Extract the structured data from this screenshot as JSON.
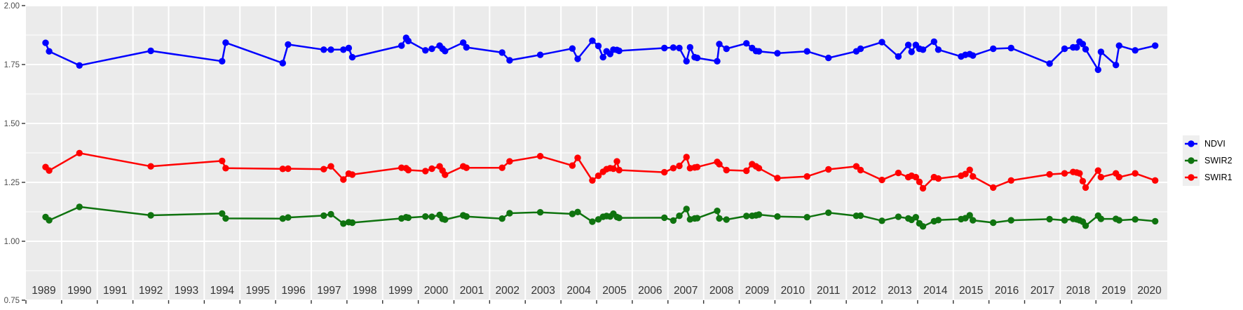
{
  "figure": {
    "background": "#FFFFFF",
    "panel_background": "#EBEBEB",
    "grid_color": "#FFFFFF",
    "x_axis_text_color": "#333333",
    "y_axis_text_color": "#4D4D4D",
    "tick_color": "#333333"
  },
  "chart_data": {
    "type": "line",
    "title": "",
    "xlabel": "",
    "ylabel": "",
    "grid": true,
    "legend_position": "right",
    "x_axis": {
      "range": [
        1988.5,
        2020.5
      ],
      "tick_labels": [
        "1989",
        "1990",
        "1991",
        "1992",
        "1993",
        "1994",
        "1995",
        "1996",
        "1997",
        "1998",
        "1999",
        "2000",
        "2001",
        "2002",
        "2003",
        "2004",
        "2005",
        "2006",
        "2007",
        "2008",
        "2009",
        "2010",
        "2011",
        "2012",
        "2013",
        "2014",
        "2015",
        "2016",
        "2017",
        "2018",
        "2019",
        "2020"
      ],
      "tick_values": [
        1989,
        1990,
        1991,
        1992,
        1993,
        1994,
        1995,
        1996,
        1997,
        1998,
        1999,
        2000,
        2001,
        2002,
        2003,
        2004,
        2005,
        2006,
        2007,
        2008,
        2009,
        2010,
        2011,
        2012,
        2013,
        2014,
        2015,
        2016,
        2017,
        2018,
        2019,
        2020
      ]
    },
    "y_axis": {
      "range": [
        0.75,
        2.0
      ],
      "tick_labels": [
        "0.75",
        "1.00",
        "1.25",
        "1.50",
        "1.75",
        "2.00"
      ],
      "tick_values": [
        0.75,
        1.0,
        1.25,
        1.5,
        1.75,
        2.0
      ],
      "minor_values": [
        0.875,
        1.125,
        1.375,
        1.625,
        1.875
      ]
    },
    "legend": {
      "entries": [
        {
          "label": "NDVI",
          "color": "#0000FF"
        },
        {
          "label": "SWIR2",
          "color": "#0F730F"
        },
        {
          "label": "SWIR1",
          "color": "#FF0000"
        }
      ],
      "key_background": "#EFEFEF"
    },
    "x": [
      1989.05,
      1989.15,
      1990.0,
      1992.0,
      1994.0,
      1994.1,
      1995.7,
      1995.85,
      1996.85,
      1997.05,
      1997.4,
      1997.55,
      1997.65,
      1999.03,
      1999.16,
      1999.22,
      1999.7,
      1999.88,
      2000.1,
      2000.18,
      2000.25,
      2000.76,
      2000.85,
      2001.85,
      2002.06,
      2002.92,
      2003.82,
      2003.97,
      2004.38,
      2004.55,
      2004.68,
      2004.78,
      2004.88,
      2004.97,
      2005.07,
      2005.13,
      2006.4,
      2006.65,
      2006.82,
      2007.02,
      2007.12,
      2007.25,
      2007.32,
      2007.88,
      2007.94,
      2008.14,
      2008.7,
      2008.86,
      2008.97,
      2009.05,
      2009.57,
      2010.4,
      2011.0,
      2011.78,
      2011.9,
      2012.5,
      2012.96,
      2013.24,
      2013.33,
      2013.45,
      2013.55,
      2013.65,
      2013.96,
      2014.08,
      2014.72,
      2014.84,
      2014.96,
      2015.05,
      2015.62,
      2016.12,
      2017.2,
      2017.62,
      2017.86,
      2017.96,
      2018.04,
      2018.13,
      2018.21,
      2018.56,
      2018.64,
      2019.06,
      2019.15,
      2019.6,
      2020.16
    ],
    "series": [
      {
        "name": "NDVI",
        "color": "#0000FF",
        "values": [
          1.842,
          1.806,
          1.746,
          1.808,
          1.764,
          1.843,
          1.756,
          1.835,
          1.813,
          1.813,
          1.813,
          1.82,
          1.781,
          1.83,
          1.863,
          1.85,
          1.81,
          1.817,
          1.83,
          1.817,
          1.807,
          1.843,
          1.823,
          1.801,
          1.768,
          1.791,
          1.818,
          1.774,
          1.851,
          1.829,
          1.781,
          1.806,
          1.795,
          1.813,
          1.812,
          1.808,
          1.82,
          1.822,
          1.82,
          1.764,
          1.823,
          1.781,
          1.778,
          1.764,
          1.837,
          1.817,
          1.84,
          1.82,
          1.807,
          1.806,
          1.798,
          1.806,
          1.778,
          1.806,
          1.817,
          1.845,
          1.784,
          1.833,
          1.804,
          1.833,
          1.817,
          1.813,
          1.847,
          1.813,
          1.784,
          1.791,
          1.794,
          1.788,
          1.817,
          1.82,
          1.754,
          1.817,
          1.823,
          1.823,
          1.847,
          1.837,
          1.815,
          1.728,
          1.804,
          1.748,
          1.83,
          1.81,
          1.83
        ]
      },
      {
        "name": "SWIR2",
        "color": "#0F730F",
        "values": [
          1.103,
          1.089,
          1.146,
          1.11,
          1.118,
          1.097,
          1.096,
          1.101,
          1.109,
          1.115,
          1.075,
          1.081,
          1.079,
          1.097,
          1.102,
          1.1,
          1.105,
          1.104,
          1.112,
          1.095,
          1.092,
          1.11,
          1.105,
          1.096,
          1.119,
          1.123,
          1.116,
          1.124,
          1.083,
          1.093,
          1.104,
          1.107,
          1.105,
          1.117,
          1.103,
          1.099,
          1.1,
          1.088,
          1.108,
          1.137,
          1.093,
          1.097,
          1.098,
          1.129,
          1.097,
          1.092,
          1.107,
          1.108,
          1.11,
          1.113,
          1.105,
          1.102,
          1.121,
          1.108,
          1.109,
          1.087,
          1.104,
          1.097,
          1.091,
          1.102,
          1.076,
          1.063,
          1.085,
          1.09,
          1.094,
          1.098,
          1.11,
          1.089,
          1.079,
          1.089,
          1.094,
          1.089,
          1.095,
          1.093,
          1.089,
          1.083,
          1.066,
          1.109,
          1.095,
          1.095,
          1.089,
          1.093,
          1.085
        ]
      },
      {
        "name": "SWIR1",
        "color": "#FF0000",
        "values": [
          1.315,
          1.3,
          1.374,
          1.318,
          1.341,
          1.31,
          1.307,
          1.308,
          1.306,
          1.318,
          1.262,
          1.287,
          1.283,
          1.312,
          1.31,
          1.302,
          1.298,
          1.308,
          1.318,
          1.3,
          1.282,
          1.318,
          1.312,
          1.312,
          1.339,
          1.361,
          1.321,
          1.354,
          1.258,
          1.278,
          1.295,
          1.306,
          1.31,
          1.308,
          1.339,
          1.302,
          1.293,
          1.31,
          1.32,
          1.357,
          1.31,
          1.313,
          1.315,
          1.337,
          1.327,
          1.302,
          1.299,
          1.327,
          1.318,
          1.31,
          1.268,
          1.275,
          1.305,
          1.318,
          1.302,
          1.26,
          1.29,
          1.272,
          1.278,
          1.272,
          1.252,
          1.225,
          1.272,
          1.266,
          1.278,
          1.285,
          1.303,
          1.275,
          1.228,
          1.258,
          1.284,
          1.288,
          1.294,
          1.292,
          1.288,
          1.255,
          1.228,
          1.3,
          1.272,
          1.288,
          1.272,
          1.288,
          1.258
        ]
      }
    ]
  }
}
